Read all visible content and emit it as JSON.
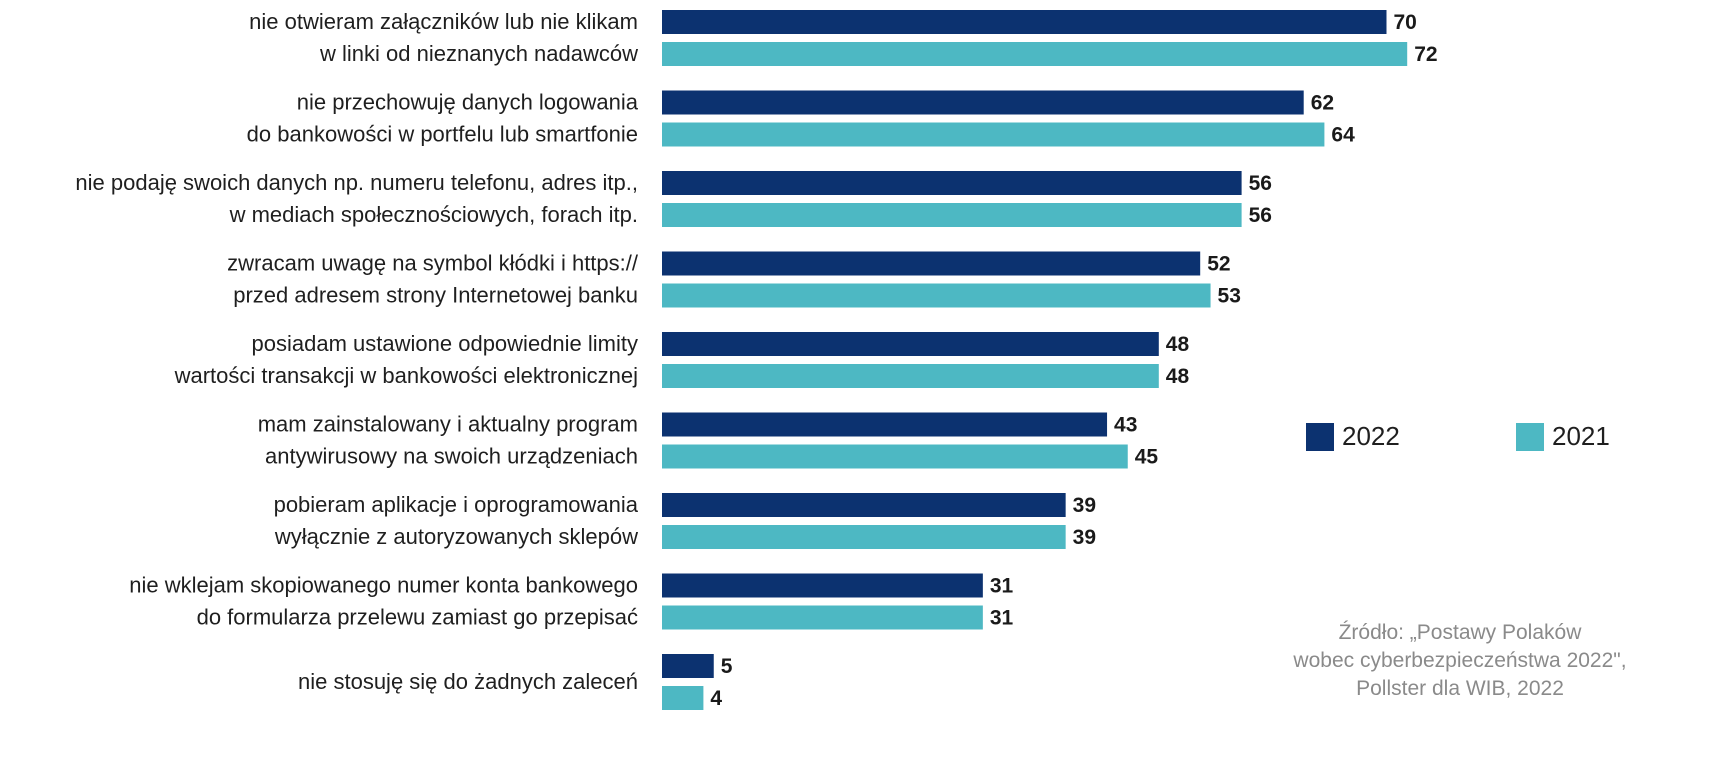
{
  "chart_data": {
    "type": "bar",
    "orientation": "horizontal",
    "categories": [
      [
        "nie otwieram załączników lub nie klikam",
        "w linki od nieznanych nadawców"
      ],
      [
        "nie przechowuję danych logowania",
        "do bankowości w portfelu lub smartfonie"
      ],
      [
        "nie podaję swoich danych np. numeru telefonu, adres itp.,",
        "w mediach społecznościowych, forach itp."
      ],
      [
        "zwracam uwagę na symbol kłódki i https://",
        "przed adresem strony Internetowej banku"
      ],
      [
        "posiadam ustawione odpowiednie limity",
        "wartości transakcji w bankowości elektronicznej"
      ],
      [
        "mam zainstalowany i aktualny program",
        "antywirusowy na swoich urządzeniach"
      ],
      [
        "pobieram aplikacje i oprogramowania",
        "wyłącznie z autoryzowanych sklepów"
      ],
      [
        "nie wklejam skopiowanego numer konta bankowego",
        "do formularza przelewu zamiast go przepisać"
      ],
      [
        "nie stosuję się do żadnych zaleceń"
      ]
    ],
    "series": [
      {
        "name": "2022",
        "color": "#0c3270",
        "values": [
          70,
          62,
          56,
          52,
          48,
          43,
          39,
          31,
          5
        ]
      },
      {
        "name": "2021",
        "color": "#4db8c3",
        "values": [
          72,
          64,
          56,
          53,
          48,
          45,
          39,
          31,
          4
        ]
      }
    ],
    "legend_position": "right",
    "grid": false,
    "xlim": [
      0,
      100
    ]
  },
  "source_text": "Źródło: „Postawy Polaków\nwobec cyberbezpieczeństwa 2022\",\nPollster dla WIB, 2022"
}
